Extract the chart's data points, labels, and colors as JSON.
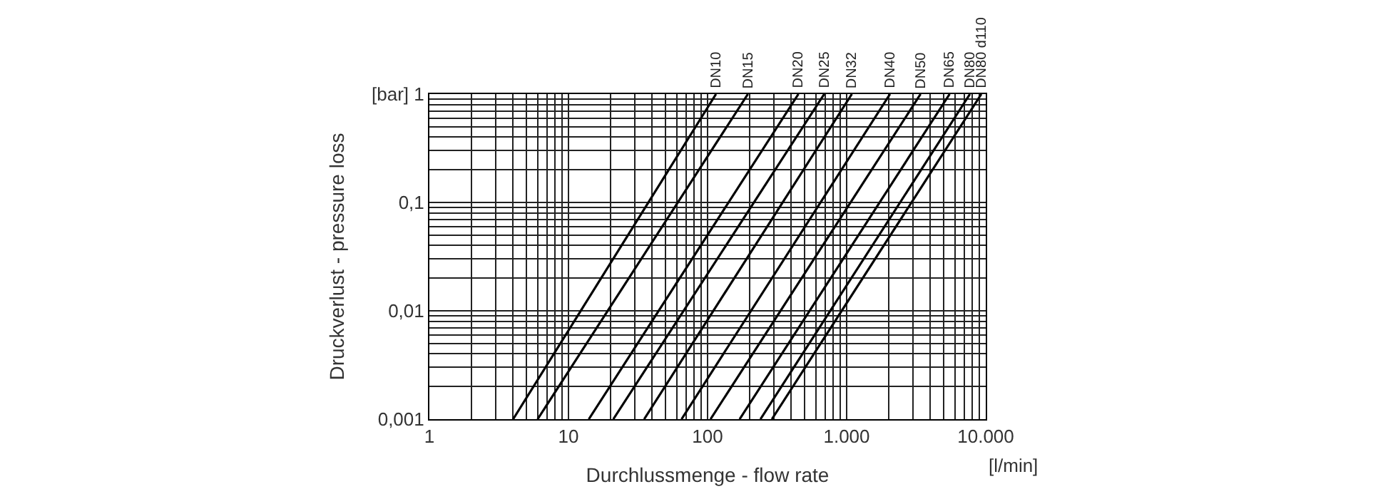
{
  "chart_data": {
    "type": "line",
    "xlabel": "Durchlussmenge - flow rate",
    "ylabel": "Druckverlust - pressure loss",
    "log": "xy",
    "grid": true,
    "legend": false,
    "marker": "none",
    "line_style": "solid",
    "xlim": [
      1,
      10000
    ],
    "ylim": [
      0.001,
      1
    ],
    "xticks": [
      1,
      {
        "value": 2,
        "label": null
      },
      {
        "value": 3,
        "label": null
      },
      {
        "value": 4,
        "label": null
      },
      {
        "value": 5,
        "label": null
      },
      {
        "value": 6,
        "label": null
      },
      {
        "value": 7,
        "label": null
      },
      {
        "value": 8,
        "label": null
      },
      {
        "value": 9,
        "label": null
      },
      10,
      {
        "value": 20,
        "label": null
      },
      {
        "value": 30,
        "label": null
      },
      {
        "value": 40,
        "label": null
      },
      {
        "value": 50,
        "label": null
      },
      {
        "value": 60,
        "label": null
      },
      {
        "value": 70,
        "label": null
      },
      {
        "value": 80,
        "label": null
      },
      {
        "value": 90,
        "label": null
      },
      100,
      {
        "value": 200,
        "label": null
      },
      {
        "value": 300,
        "label": null
      },
      {
        "value": 400,
        "label": null
      },
      {
        "value": 500,
        "label": null
      },
      {
        "value": 600,
        "label": null
      },
      {
        "value": 700,
        "label": null
      },
      {
        "value": 800,
        "label": null
      },
      {
        "value": 900,
        "label": null
      },
      {
        "value": 1000,
        "label": "1.000"
      },
      {
        "value": 2000,
        "label": null
      },
      {
        "value": 3000,
        "label": null
      },
      {
        "value": 4000,
        "label": null
      },
      {
        "value": 5000,
        "label": null
      },
      {
        "value": 6000,
        "label": null
      },
      {
        "value": 7000,
        "label": null
      },
      {
        "value": 8000,
        "label": null
      },
      {
        "value": 9000,
        "label": null
      },
      {
        "value": 10000,
        "label": "10.000"
      }
    ],
    "yticks": [
      {
        "value": 0.001,
        "label": "0,001"
      },
      {
        "value": 0.002,
        "label": null
      },
      {
        "value": 0.003,
        "label": null
      },
      {
        "value": 0.004,
        "label": null
      },
      {
        "value": 0.005,
        "label": null
      },
      {
        "value": 0.006,
        "label": null
      },
      {
        "value": 0.007,
        "label": null
      },
      {
        "value": 0.008,
        "label": null
      },
      {
        "value": 0.009,
        "label": null
      },
      {
        "value": 0.01,
        "label": "0,01"
      },
      {
        "value": 0.02,
        "label": null
      },
      {
        "value": 0.03,
        "label": null
      },
      {
        "value": 0.04,
        "label": null
      },
      {
        "value": 0.05,
        "label": null
      },
      {
        "value": 0.06,
        "label": null
      },
      {
        "value": 0.07,
        "label": null
      },
      {
        "value": 0.08,
        "label": null
      },
      {
        "value": 0.09,
        "label": null
      },
      {
        "value": 0.1,
        "label": "0,1"
      },
      {
        "value": 0.2,
        "label": null
      },
      {
        "value": 0.3,
        "label": null
      },
      {
        "value": 0.4,
        "label": null
      },
      {
        "value": 0.5,
        "label": null
      },
      {
        "value": 0.6,
        "label": null
      },
      {
        "value": 0.7,
        "label": null
      },
      {
        "value": 0.8,
        "label": null
      },
      {
        "value": 0.9,
        "label": null
      },
      {
        "value": 1,
        "label": "[bar] 1"
      }
    ],
    "annotations": [
      "[l/min]"
    ],
    "series": [
      {
        "name": "DN10",
        "color": "#000000",
        "x": [
          4,
          115
        ],
        "values": [
          0.001,
          1
        ]
      },
      {
        "name": "DN15",
        "color": "#000000",
        "x": [
          6,
          195
        ],
        "values": [
          0.001,
          1
        ]
      },
      {
        "name": "DN20",
        "color": "#000000",
        "x": [
          14,
          450
        ],
        "values": [
          0.001,
          1
        ]
      },
      {
        "name": "DN25",
        "color": "#000000",
        "x": [
          21,
          690
        ],
        "values": [
          0.001,
          1
        ]
      },
      {
        "name": "DN32",
        "color": "#000000",
        "x": [
          35,
          1090
        ],
        "values": [
          0.001,
          1
        ]
      },
      {
        "name": "DN40",
        "color": "#000000",
        "x": [
          65,
          2050
        ],
        "values": [
          0.001,
          1
        ]
      },
      {
        "name": "DN50",
        "color": "#000000",
        "x": [
          105,
          3400
        ],
        "values": [
          0.001,
          1
        ]
      },
      {
        "name": "DN65",
        "color": "#000000",
        "x": [
          170,
          5500
        ],
        "values": [
          0.001,
          1
        ]
      },
      {
        "name": "DN80",
        "color": "#000000",
        "x": [
          240,
          7700
        ],
        "values": [
          0.001,
          1
        ]
      },
      {
        "name": "DN80 d110",
        "color": "#000000",
        "x": [
          290,
          9300
        ],
        "values": [
          0.001,
          1
        ]
      }
    ]
  }
}
